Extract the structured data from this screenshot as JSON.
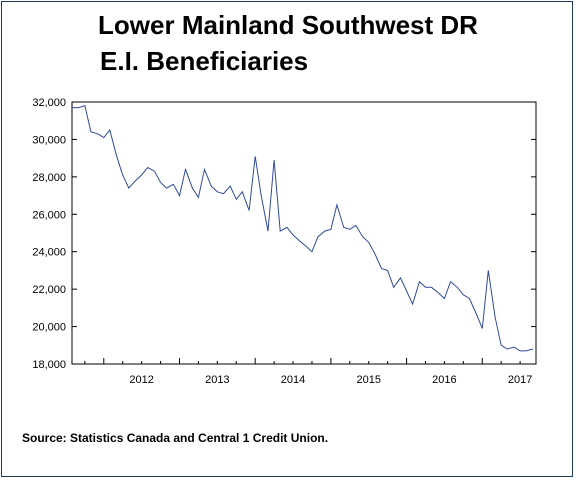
{
  "chart_data": {
    "type": "line",
    "title_lines": [
      "Lower Mainland Southwest DR",
      "E.I. Beneficiaries"
    ],
    "source": "Source: Statistics Canada and Central 1 Credit Union.",
    "ylim": [
      18000,
      32000
    ],
    "y_ticks": [
      18000,
      20000,
      22000,
      24000,
      26000,
      28000,
      30000,
      32000
    ],
    "y_tick_labels": [
      "18,000",
      "20,000",
      "22,000",
      "24,000",
      "26,000",
      "28,000",
      "30,000",
      "32,000"
    ],
    "x_start": 2011.58,
    "x_end": 2017.71,
    "x_tick_labels": [
      "2012",
      "2013",
      "2014",
      "2015",
      "2016",
      "2017"
    ],
    "grid": false,
    "legend": "none",
    "series": [
      {
        "line_color": "#2f4a9c",
        "x": [
          2011.58,
          2011.67,
          2011.75,
          2011.83,
          2011.92,
          2012.0,
          2012.08,
          2012.17,
          2012.25,
          2012.33,
          2012.42,
          2012.5,
          2012.58,
          2012.67,
          2012.75,
          2012.83,
          2012.92,
          2013.0,
          2013.08,
          2013.17,
          2013.25,
          2013.33,
          2013.42,
          2013.5,
          2013.58,
          2013.67,
          2013.75,
          2013.83,
          2013.92,
          2014.0,
          2014.08,
          2014.17,
          2014.25,
          2014.33,
          2014.42,
          2014.5,
          2014.58,
          2014.67,
          2014.75,
          2014.83,
          2014.92,
          2015.0,
          2015.08,
          2015.17,
          2015.25,
          2015.33,
          2015.42,
          2015.5,
          2015.58,
          2015.67,
          2015.75,
          2015.83,
          2015.92,
          2016.0,
          2016.08,
          2016.17,
          2016.25,
          2016.33,
          2016.42,
          2016.5,
          2016.58,
          2016.67,
          2016.75,
          2016.83,
          2016.92,
          2017.0,
          2017.08,
          2017.17,
          2017.25,
          2017.33,
          2017.42,
          2017.5,
          2017.58,
          2017.67
        ],
        "values": [
          31700,
          31700,
          31800,
          30400,
          30300,
          30100,
          30500,
          29100,
          28100,
          27400,
          27800,
          28100,
          28500,
          28300,
          27700,
          27400,
          27600,
          27000,
          28400,
          27400,
          26900,
          28400,
          27500,
          27200,
          27100,
          27500,
          26800,
          27200,
          26200,
          29100,
          27000,
          25100,
          28900,
          25100,
          25300,
          24900,
          24600,
          24300,
          24000,
          24800,
          25100,
          25200,
          26500,
          25300,
          25200,
          25400,
          24800,
          24500,
          23900,
          23100,
          23000,
          22100,
          22600,
          21900,
          21200,
          22400,
          22100,
          22100,
          21800,
          21500,
          22400,
          22100,
          21700,
          21500,
          20700,
          19900,
          23000,
          20500,
          19000,
          18800,
          18900,
          18700,
          18700,
          18800
        ]
      }
    ]
  }
}
